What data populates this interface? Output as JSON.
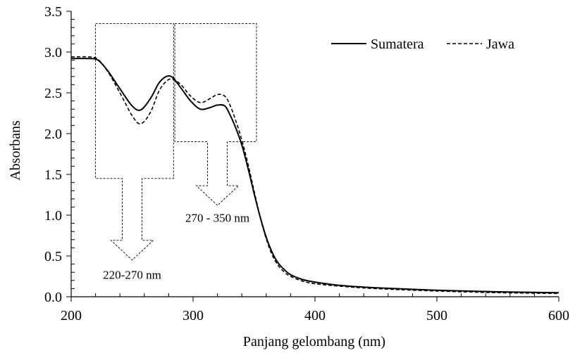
{
  "chart_data": {
    "type": "line",
    "title": "",
    "xlabel": "Panjang gelombang (nm)",
    "ylabel": "Absorbans",
    "xlim": [
      200,
      600
    ],
    "ylim": [
      0,
      3.5
    ],
    "xticks": [
      200,
      300,
      400,
      500,
      600
    ],
    "xtick_labels": [
      "200",
      "300",
      "400",
      "500",
      "600"
    ],
    "yticks": [
      0,
      0.5,
      1.0,
      1.5,
      2.0,
      2.5,
      3.0,
      3.5
    ],
    "ytick_labels": [
      "0.0",
      "0.5",
      "1.0",
      "1.5",
      "2.0",
      "2.5",
      "3.0",
      "3.5"
    ],
    "grid": false,
    "legend_position": "top-right",
    "series": [
      {
        "name": "Sumatera",
        "style": "solid",
        "color": "#000000",
        "x": [
          200,
          215,
          222,
          230,
          240,
          250,
          257,
          265,
          272,
          278,
          283,
          290,
          298,
          306,
          314,
          320,
          326,
          330,
          335,
          340,
          345,
          350,
          355,
          360,
          365,
          370,
          375,
          380,
          390,
          400,
          420,
          450,
          500,
          550,
          600
        ],
        "y": [
          2.92,
          2.92,
          2.9,
          2.77,
          2.55,
          2.34,
          2.29,
          2.43,
          2.62,
          2.7,
          2.69,
          2.56,
          2.4,
          2.3,
          2.32,
          2.35,
          2.34,
          2.24,
          2.07,
          1.86,
          1.58,
          1.27,
          0.98,
          0.73,
          0.54,
          0.41,
          0.33,
          0.27,
          0.21,
          0.18,
          0.14,
          0.11,
          0.08,
          0.06,
          0.05
        ]
      },
      {
        "name": "Jawa",
        "style": "dashed",
        "color": "#000000",
        "x": [
          200,
          215,
          222,
          230,
          240,
          250,
          257,
          265,
          272,
          278,
          283,
          290,
          298,
          306,
          314,
          320,
          326,
          330,
          335,
          340,
          345,
          350,
          355,
          360,
          365,
          370,
          375,
          380,
          390,
          400,
          420,
          450,
          500,
          550,
          600
        ],
        "y": [
          2.94,
          2.94,
          2.91,
          2.76,
          2.5,
          2.22,
          2.12,
          2.26,
          2.52,
          2.64,
          2.67,
          2.6,
          2.46,
          2.38,
          2.43,
          2.48,
          2.46,
          2.36,
          2.16,
          1.92,
          1.63,
          1.3,
          0.98,
          0.71,
          0.51,
          0.38,
          0.3,
          0.25,
          0.19,
          0.16,
          0.13,
          0.1,
          0.07,
          0.05,
          0.04
        ]
      }
    ],
    "annotations": [
      {
        "id": "region-1",
        "label": "220-270 nm",
        "x_range": [
          220,
          284
        ],
        "y_top": 3.35,
        "y_bottom": 1.45,
        "arrow_x": 250,
        "arrow_tip_y": 0.45,
        "label_x": 250,
        "label_y": 0.22
      },
      {
        "id": "region-2",
        "label": "270 - 350 nm",
        "x_range": [
          285,
          352
        ],
        "y_top": 3.35,
        "y_bottom": 1.9,
        "arrow_x": 320,
        "arrow_tip_y": 1.12,
        "label_x": 320,
        "label_y": 0.92
      }
    ]
  }
}
